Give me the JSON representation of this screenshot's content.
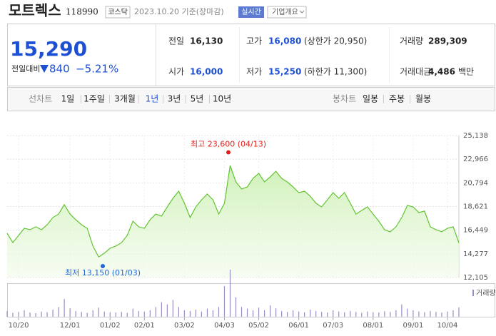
{
  "header": {
    "name": "모트렉스",
    "code": "118990",
    "market": "코스닥",
    "date": "2023.10.20 기준(장마감)",
    "realtime": "실시간",
    "overview": "기업개요"
  },
  "summary": {
    "price": "15,290",
    "change_label": "전일대비",
    "change": "840",
    "change_pct": "−5.21%",
    "items": [
      {
        "label": "전일",
        "value": "16,130"
      },
      {
        "label": "고가",
        "value": "16,080",
        "note": "(상한가 20,950)"
      },
      {
        "label": "거래량",
        "value": "289,309"
      },
      {
        "label": "시가",
        "value": "16,000"
      },
      {
        "label": "저가",
        "value": "15,250",
        "note": "(하한가 11,300)"
      },
      {
        "label": "거래대금",
        "value": "4,486",
        "unit": "백만"
      }
    ]
  },
  "tabs": {
    "line_label": "선차트",
    "line_periods": [
      "1일",
      "1주일",
      "3개월",
      "1년",
      "3년",
      "5년",
      "10년"
    ],
    "selected": 3,
    "candle_label": "봉차트",
    "candle_periods": [
      "일봉",
      "주봉",
      "월봉"
    ]
  },
  "chart_data": {
    "type": "line",
    "color": "#62c431",
    "categories": [
      null,
      null,
      "10/20",
      null,
      null,
      null,
      null,
      null,
      null,
      null,
      null,
      "12/01",
      null,
      null,
      null,
      null,
      null,
      null,
      "01/02",
      null,
      null,
      null,
      null,
      null,
      "02/01",
      null,
      null,
      null,
      null,
      null,
      null,
      "03/02",
      null,
      null,
      null,
      null,
      null,
      null,
      "04/03",
      null,
      null,
      null,
      null,
      null,
      "05/02",
      null,
      null,
      null,
      null,
      null,
      null,
      "06/01",
      null,
      null,
      null,
      null,
      null,
      "07/03",
      null,
      null,
      null,
      null,
      null,
      null,
      "08/01",
      null,
      null,
      null,
      null,
      null,
      null,
      "09/01",
      null,
      null,
      null,
      null,
      null,
      "10/04",
      null,
      null
    ],
    "values": [
      16170,
      15310,
      15970,
      16620,
      16490,
      16760,
      16490,
      16950,
      17610,
      17930,
      18790,
      17930,
      17410,
      16950,
      16620,
      14990,
      14000,
      14330,
      14790,
      14990,
      15310,
      15970,
      17280,
      16760,
      16620,
      17410,
      17930,
      17740,
      18590,
      19380,
      20030,
      18920,
      17610,
      18590,
      19240,
      19770,
      19240,
      17930,
      18920,
      22390,
      20880,
      20230,
      20420,
      21210,
      21670,
      20880,
      21340,
      21860,
      21210,
      20880,
      20420,
      19900,
      20030,
      19570,
      18920,
      18590,
      19240,
      19900,
      19380,
      19900,
      18920,
      17930,
      18260,
      18590,
      17930,
      17280,
      16490,
      16300,
      16760,
      17610,
      18720,
      18590,
      18070,
      18200,
      16760,
      16490,
      16300,
      16620,
      16760,
      15290
    ],
    "ylim": [
      12105,
      25138
    ],
    "yticks": [
      {
        "value": 12105,
        "label": "12,105"
      },
      {
        "value": 14277,
        "label": "14,277"
      },
      {
        "value": 16449,
        "label": "16,449"
      },
      {
        "value": 18621,
        "label": "18,621"
      },
      {
        "value": 20794,
        "label": "20,794"
      },
      {
        "value": 22966,
        "label": "22,966"
      },
      {
        "value": 25138,
        "label": "25,138"
      }
    ],
    "grid": true,
    "annotations": [
      {
        "label": "최고 23,600 (04/13)",
        "value": 23600,
        "color": "#e0201c"
      },
      {
        "label": "최저 13,150 (01/03)",
        "value": 13150,
        "color": "#2166d8"
      }
    ],
    "volume": {
      "name": "거래량",
      "color": "#9a8cc4",
      "values": [
        180000,
        120000,
        150000,
        200000,
        130000,
        110000,
        160000,
        140000,
        220000,
        300000,
        550000,
        260000,
        180000,
        150000,
        120000,
        200000,
        280000,
        160000,
        140000,
        130000,
        150000,
        120000,
        250000,
        180000,
        160000,
        200000,
        300000,
        450000,
        380000,
        520000,
        300000,
        200000,
        180000,
        220000,
        160000,
        250000,
        200000,
        300000,
        950000,
        1500000,
        600000,
        300000,
        250000,
        200000,
        280000,
        200000,
        350000,
        260000,
        180000,
        150000,
        200000,
        160000,
        140000,
        220000,
        180000,
        150000,
        130000,
        200000,
        160000,
        140000,
        180000,
        150000,
        120000,
        160000,
        140000,
        130000,
        170000,
        150000,
        200000,
        380000,
        250000,
        200000,
        160000,
        140000,
        180000,
        150000,
        130000,
        160000,
        200000,
        289309
      ]
    }
  }
}
